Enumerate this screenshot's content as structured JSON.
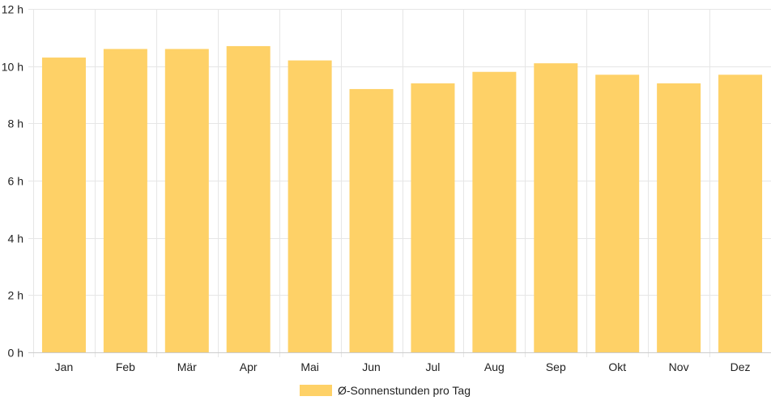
{
  "chart_data": {
    "type": "bar",
    "categories": [
      "Jan",
      "Feb",
      "Mär",
      "Apr",
      "Mai",
      "Jun",
      "Jul",
      "Aug",
      "Sep",
      "Okt",
      "Nov",
      "Dez"
    ],
    "series": [
      {
        "name": "Ø-Sonnenstunden pro Tag",
        "values": [
          10.3,
          10.6,
          10.6,
          10.7,
          10.2,
          9.2,
          9.4,
          9.8,
          10.1,
          9.7,
          9.4,
          9.7
        ]
      }
    ],
    "ylim": [
      0,
      12
    ],
    "yticks": [
      0,
      2,
      4,
      6,
      8,
      10,
      12
    ],
    "ytick_suffix": " h",
    "grid": true,
    "legend_position": "bottom",
    "colors": {
      "bar": "#fed167",
      "grid": "#e6e6e6",
      "axis": "#cccccc"
    }
  }
}
